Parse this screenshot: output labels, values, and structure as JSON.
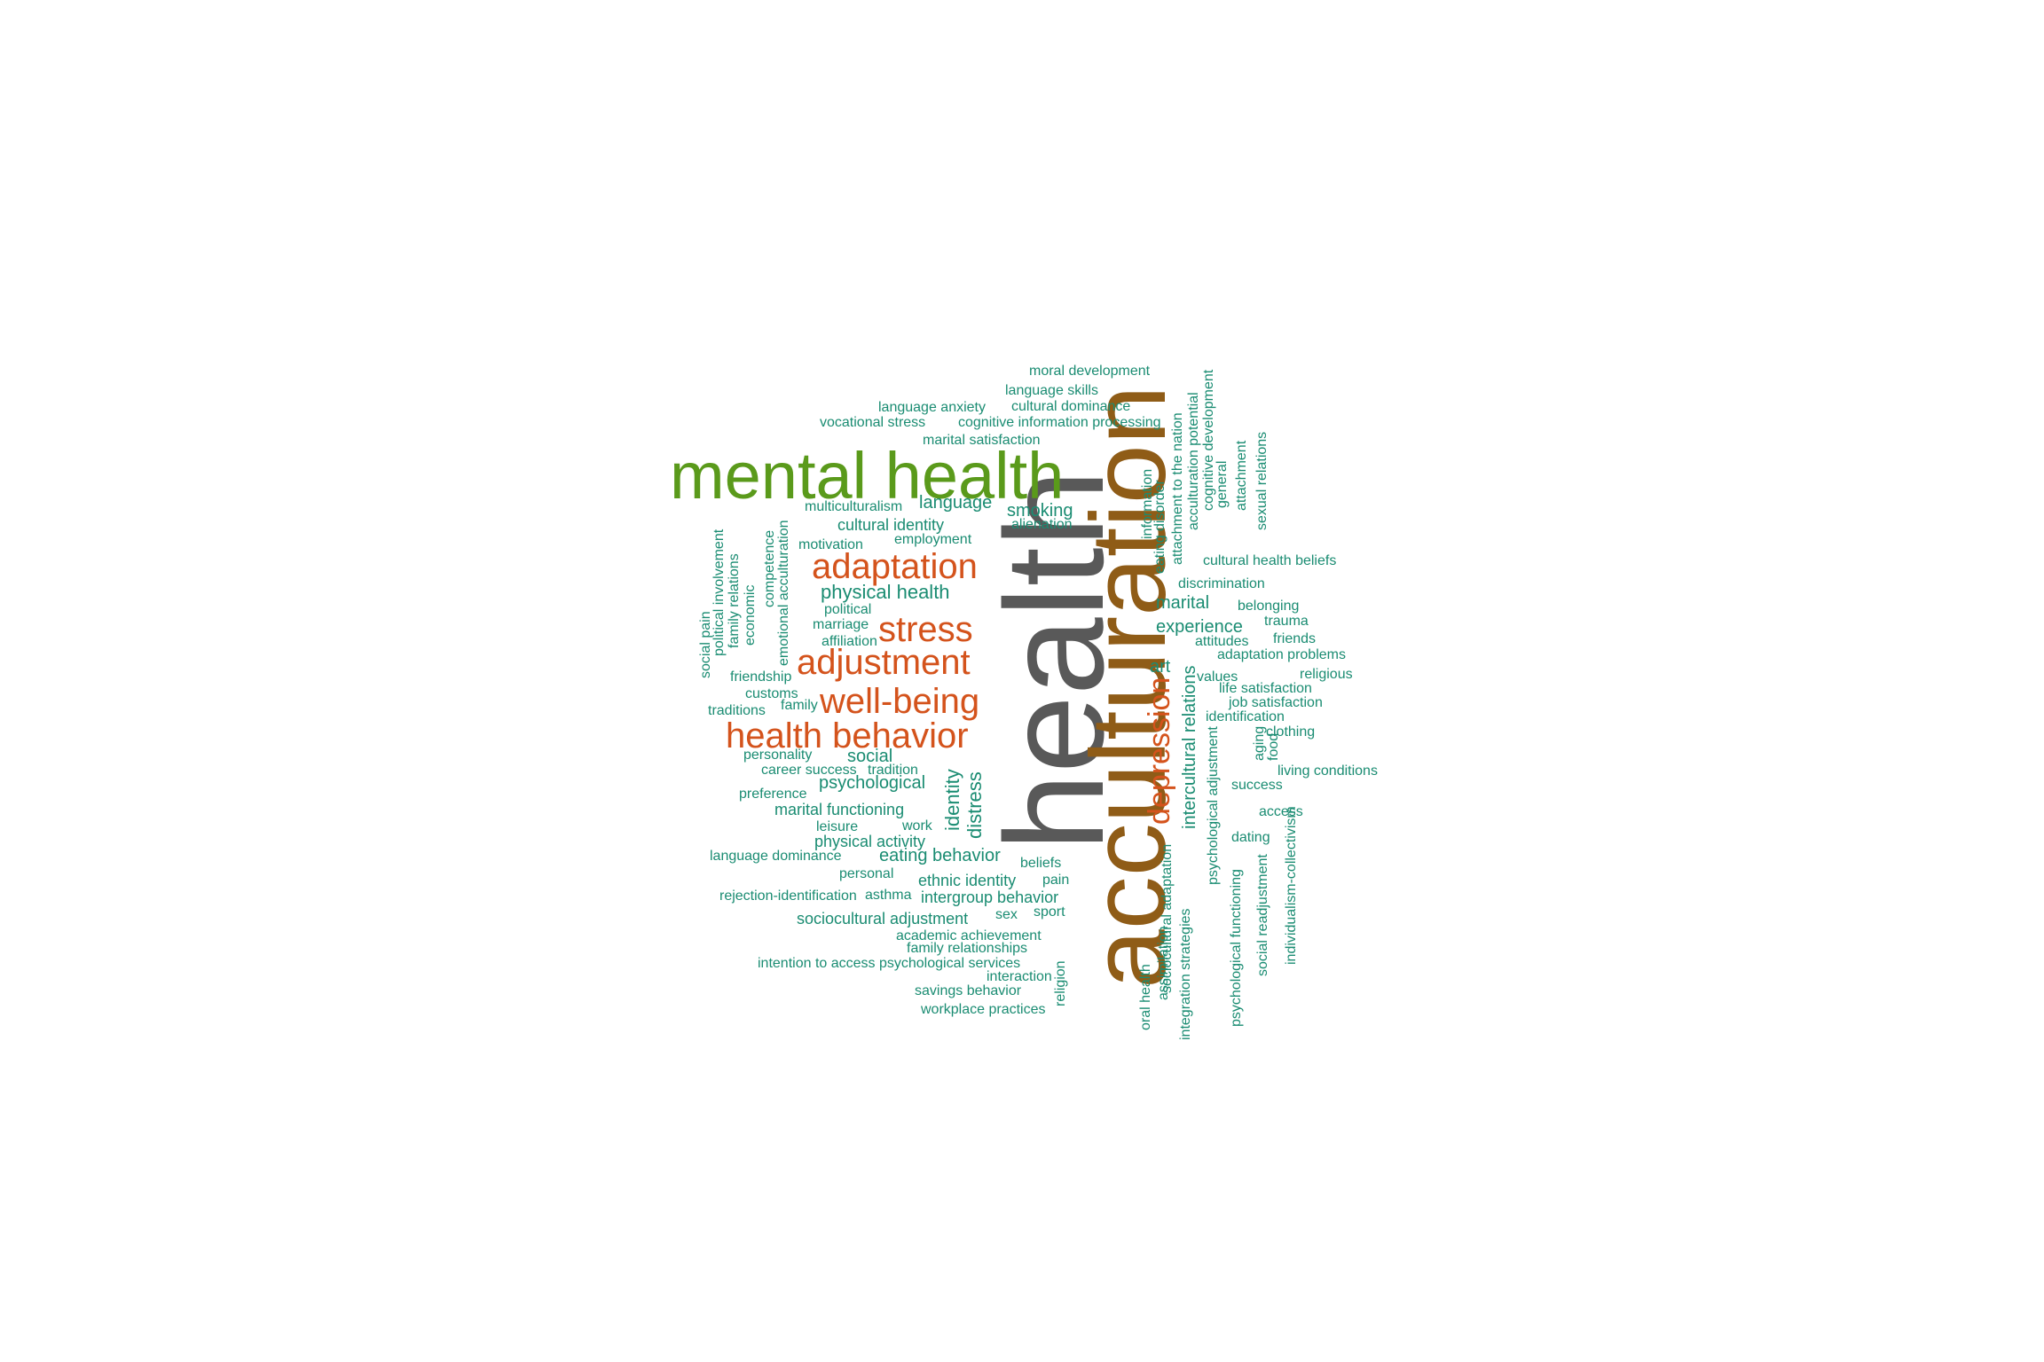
{
  "palette": {
    "gray": "#595959",
    "brown": "#8f5c17",
    "green": "#5a9a1b",
    "orange": "#d4531c",
    "teal": "#1a8c72"
  },
  "words": [
    {
      "text": "health",
      "weight": 1.0,
      "color": "gray",
      "rotated": true
    },
    {
      "text": "acculturation",
      "weight": 0.95,
      "color": "brown",
      "rotated": true
    },
    {
      "text": "mental health",
      "weight": 0.7,
      "color": "green",
      "rotated": false
    },
    {
      "text": "adaptation",
      "weight": 0.45,
      "color": "orange",
      "rotated": false
    },
    {
      "text": "stress",
      "weight": 0.45,
      "color": "orange",
      "rotated": false
    },
    {
      "text": "adjustment",
      "weight": 0.45,
      "color": "orange",
      "rotated": false
    },
    {
      "text": "well-being",
      "weight": 0.45,
      "color": "orange",
      "rotated": false
    },
    {
      "text": "health behavior",
      "weight": 0.45,
      "color": "orange",
      "rotated": false
    },
    {
      "text": "depression",
      "weight": 0.45,
      "color": "orange",
      "rotated": true
    },
    {
      "text": "moral development",
      "weight": 0.1,
      "color": "teal",
      "rotated": false
    },
    {
      "text": "language skills",
      "weight": 0.1,
      "color": "teal",
      "rotated": false
    },
    {
      "text": "language anxiety",
      "weight": 0.1,
      "color": "teal",
      "rotated": false
    },
    {
      "text": "cultural dominance",
      "weight": 0.1,
      "color": "teal",
      "rotated": false
    },
    {
      "text": "vocational stress",
      "weight": 0.1,
      "color": "teal",
      "rotated": false
    },
    {
      "text": "cognitive information processing",
      "weight": 0.1,
      "color": "teal",
      "rotated": false
    },
    {
      "text": "marital satisfaction",
      "weight": 0.1,
      "color": "teal",
      "rotated": false
    },
    {
      "text": "multiculturalism",
      "weight": 0.1,
      "color": "teal",
      "rotated": false
    },
    {
      "text": "language",
      "weight": 0.2,
      "color": "teal",
      "rotated": false
    },
    {
      "text": "smoking",
      "weight": 0.2,
      "color": "teal",
      "rotated": false
    },
    {
      "text": "cultural identity",
      "weight": 0.15,
      "color": "teal",
      "rotated": false
    },
    {
      "text": "alienation",
      "weight": 0.1,
      "color": "teal",
      "rotated": false
    },
    {
      "text": "motivation",
      "weight": 0.1,
      "color": "teal",
      "rotated": false
    },
    {
      "text": "employment",
      "weight": 0.1,
      "color": "teal",
      "rotated": false
    },
    {
      "text": "physical health",
      "weight": 0.25,
      "color": "teal",
      "rotated": false
    },
    {
      "text": "political",
      "weight": 0.1,
      "color": "teal",
      "rotated": false
    },
    {
      "text": "marriage",
      "weight": 0.1,
      "color": "teal",
      "rotated": false
    },
    {
      "text": "affiliation",
      "weight": 0.1,
      "color": "teal",
      "rotated": false
    },
    {
      "text": "friendship",
      "weight": 0.1,
      "color": "teal",
      "rotated": false
    },
    {
      "text": "customs",
      "weight": 0.1,
      "color": "teal",
      "rotated": false
    },
    {
      "text": "family",
      "weight": 0.1,
      "color": "teal",
      "rotated": false
    },
    {
      "text": "traditions",
      "weight": 0.1,
      "color": "teal",
      "rotated": false
    },
    {
      "text": "personality",
      "weight": 0.1,
      "color": "teal",
      "rotated": false
    },
    {
      "text": "social",
      "weight": 0.2,
      "color": "teal",
      "rotated": false
    },
    {
      "text": "career success",
      "weight": 0.1,
      "color": "teal",
      "rotated": false
    },
    {
      "text": "tradition",
      "weight": 0.1,
      "color": "teal",
      "rotated": false
    },
    {
      "text": "psychological",
      "weight": 0.2,
      "color": "teal",
      "rotated": false
    },
    {
      "text": "preference",
      "weight": 0.1,
      "color": "teal",
      "rotated": false
    },
    {
      "text": "marital functioning",
      "weight": 0.15,
      "color": "teal",
      "rotated": false
    },
    {
      "text": "leisure",
      "weight": 0.1,
      "color": "teal",
      "rotated": false
    },
    {
      "text": "work",
      "weight": 0.1,
      "color": "teal",
      "rotated": false
    },
    {
      "text": "physical activity",
      "weight": 0.15,
      "color": "teal",
      "rotated": false
    },
    {
      "text": "language dominance",
      "weight": 0.1,
      "color": "teal",
      "rotated": false
    },
    {
      "text": "eating behavior",
      "weight": 0.2,
      "color": "teal",
      "rotated": false
    },
    {
      "text": "personal",
      "weight": 0.1,
      "color": "teal",
      "rotated": false
    },
    {
      "text": "ethnic identity",
      "weight": 0.15,
      "color": "teal",
      "rotated": false
    },
    {
      "text": "beliefs",
      "weight": 0.1,
      "color": "teal",
      "rotated": false
    },
    {
      "text": "pain",
      "weight": 0.1,
      "color": "teal",
      "rotated": false
    },
    {
      "text": "rejection-identification",
      "weight": 0.1,
      "color": "teal",
      "rotated": false
    },
    {
      "text": "asthma",
      "weight": 0.1,
      "color": "teal",
      "rotated": false
    },
    {
      "text": "intergroup behavior",
      "weight": 0.15,
      "color": "teal",
      "rotated": false
    },
    {
      "text": "sociocultural adjustment",
      "weight": 0.15,
      "color": "teal",
      "rotated": false
    },
    {
      "text": "sex",
      "weight": 0.1,
      "color": "teal",
      "rotated": false
    },
    {
      "text": "sport",
      "weight": 0.1,
      "color": "teal",
      "rotated": false
    },
    {
      "text": "academic achievement",
      "weight": 0.15,
      "color": "teal",
      "rotated": false
    },
    {
      "text": "family relationships",
      "weight": 0.1,
      "color": "teal",
      "rotated": false
    },
    {
      "text": "intention to access psychological services",
      "weight": 0.1,
      "color": "teal",
      "rotated": false
    },
    {
      "text": "interaction",
      "weight": 0.1,
      "color": "teal",
      "rotated": false
    },
    {
      "text": "savings behavior",
      "weight": 0.1,
      "color": "teal",
      "rotated": false
    },
    {
      "text": "workplace practices",
      "weight": 0.1,
      "color": "teal",
      "rotated": false
    },
    {
      "text": "religion",
      "weight": 0.1,
      "color": "teal",
      "rotated": true
    },
    {
      "text": "identity",
      "weight": 0.2,
      "color": "teal",
      "rotated": true
    },
    {
      "text": "distress",
      "weight": 0.2,
      "color": "teal",
      "rotated": true
    },
    {
      "text": "art",
      "weight": 0.2,
      "color": "teal",
      "rotated": false
    },
    {
      "text": "marital",
      "weight": 0.2,
      "color": "teal",
      "rotated": false
    },
    {
      "text": "experience",
      "weight": 0.2,
      "color": "teal",
      "rotated": false
    },
    {
      "text": "discrimination",
      "weight": 0.1,
      "color": "teal",
      "rotated": false
    },
    {
      "text": "cultural health beliefs",
      "weight": 0.1,
      "color": "teal",
      "rotated": false
    },
    {
      "text": "belonging",
      "weight": 0.1,
      "color": "teal",
      "rotated": false
    },
    {
      "text": "trauma",
      "weight": 0.1,
      "color": "teal",
      "rotated": false
    },
    {
      "text": "attitudes",
      "weight": 0.1,
      "color": "teal",
      "rotated": false
    },
    {
      "text": "friends",
      "weight": 0.1,
      "color": "teal",
      "rotated": false
    },
    {
      "text": "adaptation problems",
      "weight": 0.1,
      "color": "teal",
      "rotated": false
    },
    {
      "text": "values",
      "weight": 0.15,
      "color": "teal",
      "rotated": false
    },
    {
      "text": "religious",
      "weight": 0.1,
      "color": "teal",
      "rotated": false
    },
    {
      "text": "life satisfaction",
      "weight": 0.15,
      "color": "teal",
      "rotated": false
    },
    {
      "text": "job satisfaction",
      "weight": 0.15,
      "color": "teal",
      "rotated": false
    },
    {
      "text": "identification",
      "weight": 0.15,
      "color": "teal",
      "rotated": false
    },
    {
      "text": "clothing",
      "weight": 0.1,
      "color": "teal",
      "rotated": false
    },
    {
      "text": "living conditions",
      "weight": 0.1,
      "color": "teal",
      "rotated": false
    },
    {
      "text": "success",
      "weight": 0.15,
      "color": "teal",
      "rotated": false
    },
    {
      "text": "access",
      "weight": 0.1,
      "color": "teal",
      "rotated": false
    },
    {
      "text": "dating",
      "weight": 0.1,
      "color": "teal",
      "rotated": false
    },
    {
      "text": "aging",
      "weight": 0.1,
      "color": "teal",
      "rotated": true
    },
    {
      "text": "food",
      "weight": 0.1,
      "color": "teal",
      "rotated": true
    },
    {
      "text": "intercultural relations",
      "weight": 0.2,
      "color": "teal",
      "rotated": true
    },
    {
      "text": "psychological adjustment",
      "weight": 0.15,
      "color": "teal",
      "rotated": true
    },
    {
      "text": "psychological functioning",
      "weight": 0.1,
      "color": "teal",
      "rotated": true
    },
    {
      "text": "social readjustment",
      "weight": 0.1,
      "color": "teal",
      "rotated": true
    },
    {
      "text": "individualism-collectivism",
      "weight": 0.1,
      "color": "teal",
      "rotated": true
    },
    {
      "text": "oral health",
      "weight": 0.1,
      "color": "teal",
      "rotated": true
    },
    {
      "text": "assimilation",
      "weight": 0.1,
      "color": "teal",
      "rotated": true
    },
    {
      "text": "sociocultural adaptation",
      "weight": 0.1,
      "color": "teal",
      "rotated": true
    },
    {
      "text": "integration strategies",
      "weight": 0.1,
      "color": "teal",
      "rotated": true
    },
    {
      "text": "information",
      "weight": 0.1,
      "color": "teal",
      "rotated": true
    },
    {
      "text": "eating disorder",
      "weight": 0.1,
      "color": "teal",
      "rotated": true
    },
    {
      "text": "attachment to the nation",
      "weight": 0.1,
      "color": "teal",
      "rotated": true
    },
    {
      "text": "acculturation potential",
      "weight": 0.1,
      "color": "teal",
      "rotated": true
    },
    {
      "text": "cognitive development",
      "weight": 0.1,
      "color": "teal",
      "rotated": true
    },
    {
      "text": "general",
      "weight": 0.1,
      "color": "teal",
      "rotated": true
    },
    {
      "text": "attachment",
      "weight": 0.1,
      "color": "teal",
      "rotated": true
    },
    {
      "text": "sexual relations",
      "weight": 0.1,
      "color": "teal",
      "rotated": true
    },
    {
      "text": "competence",
      "weight": 0.1,
      "color": "teal",
      "rotated": true
    },
    {
      "text": "emotional acculturation",
      "weight": 0.1,
      "color": "teal",
      "rotated": true
    },
    {
      "text": "economic",
      "weight": 0.1,
      "color": "teal",
      "rotated": true
    },
    {
      "text": "family relations",
      "weight": 0.1,
      "color": "teal",
      "rotated": true
    },
    {
      "text": "political involvement",
      "weight": 0.1,
      "color": "teal",
      "rotated": true
    },
    {
      "text": "social pain",
      "weight": 0.1,
      "color": "teal",
      "rotated": true
    }
  ]
}
